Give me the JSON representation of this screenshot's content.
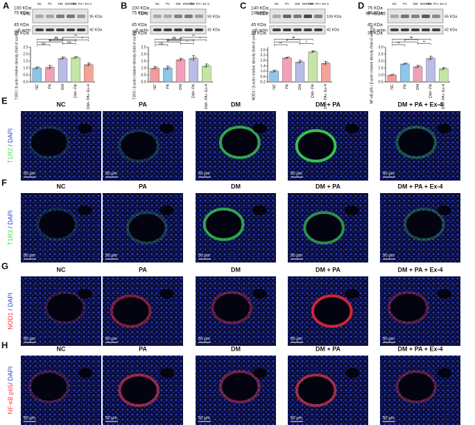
{
  "chart_data": [
    {
      "type": "bar",
      "panel": "A",
      "y_label": "T1R2 / β-actin relative density (fold of control)",
      "categories": [
        "NC",
        "PA",
        "DM",
        "DM+ PA",
        "DM+ PA+ Ex-4"
      ],
      "values": [
        1.0,
        1.05,
        1.7,
        1.75,
        1.25
      ],
      "errors": [
        0.08,
        0.15,
        0.1,
        0.06,
        0.12
      ],
      "colors": [
        "#8ec5ea",
        "#f2a0b8",
        "#b8bde8",
        "#c4e6a4",
        "#f4a394"
      ],
      "ylim": [
        0,
        2.5
      ],
      "yticks": [
        {
          "value": 0,
          "label": "0.0"
        },
        {
          "value": 0.5,
          "label": "0.5"
        },
        {
          "value": 1,
          "label": "1.0"
        },
        {
          "value": 1.5,
          "label": "1.5"
        },
        {
          "value": 2,
          "label": "2.0"
        },
        {
          "value": 2.5,
          "label": "2.5"
        }
      ],
      "annotations": [
        "ns",
        "**",
        "**",
        "ns",
        "ns",
        "*",
        "*",
        "**"
      ]
    },
    {
      "type": "bar",
      "panel": "B",
      "y_label": "T1R3 / β-actin relative density (fold of control)",
      "categories": [
        "NC",
        "PA",
        "DM",
        "DM+ PA",
        "DM+ PA+ Ex-4"
      ],
      "values": [
        1.0,
        1.0,
        1.6,
        1.7,
        1.15
      ],
      "errors": [
        0.12,
        0.15,
        0.1,
        0.2,
        0.15
      ],
      "colors": [
        "#f29c9c",
        "#8ec5ea",
        "#f2a0b8",
        "#b8bde8",
        "#c4e6a4"
      ],
      "ylim": [
        0,
        2.5
      ],
      "yticks": [
        {
          "value": 0,
          "label": "0.0"
        },
        {
          "value": 0.5,
          "label": "0.5"
        },
        {
          "value": 1,
          "label": "1.0"
        },
        {
          "value": 1.5,
          "label": "1.5"
        },
        {
          "value": 2,
          "label": "2.0"
        },
        {
          "value": 2.5,
          "label": "2.5"
        }
      ],
      "annotations": [
        "ns",
        "**",
        "**",
        "ns",
        "*",
        "**",
        "*",
        "**"
      ]
    },
    {
      "type": "bar",
      "panel": "C",
      "y_label": "NOD1 / β-actin relative density (fold of control)",
      "categories": [
        "NC",
        "PA",
        "DM",
        "DM+ PA",
        "DM+ PA+ Ex-4"
      ],
      "values": [
        1.0,
        2.0,
        1.7,
        2.45,
        1.6
      ],
      "errors": [
        0.08,
        0.06,
        0.12,
        0.08,
        0.15
      ],
      "colors": [
        "#8ec5ea",
        "#f2a0b8",
        "#b8bde8",
        "#c4e6a4",
        "#f4a394"
      ],
      "ylim": [
        0.2,
        2.8
      ],
      "yticks": [
        0.2,
        0.6,
        {
          "value": 1,
          "label": "1.0"
        },
        1.4,
        1.8,
        2.2,
        2.6
      ],
      "annotations": [
        "**",
        "*",
        "*",
        "**",
        "*"
      ]
    },
    {
      "type": "bar",
      "panel": "D",
      "y_label": "NF-κB p65 / β-actin relative density (fold of control)",
      "categories": [
        "NC",
        "PA",
        "DM",
        "DM+ PA",
        "DM+ PA+ Ex-4"
      ],
      "values": [
        1.0,
        1.8,
        1.6,
        2.2,
        1.45
      ],
      "errors": [
        0.02,
        0.05,
        0.1,
        0.15,
        0.08
      ],
      "colors": [
        "#f29c9c",
        "#8ec5ea",
        "#f2a0b8",
        "#b8bde8",
        "#c4e6a4"
      ],
      "ylim": [
        0.5,
        3.0
      ],
      "yticks": [
        0.5,
        {
          "value": 1,
          "label": "1.0"
        },
        1.5,
        {
          "value": 2,
          "label": "2.0"
        },
        2.5,
        {
          "value": 3,
          "label": "3.0"
        }
      ],
      "annotations": [
        "**",
        "*",
        "**",
        "*",
        "**"
      ]
    }
  ],
  "blots": [
    {
      "target": "T1R2",
      "markers": [
        "100 KDa",
        "75 KDa",
        "45 KDa",
        "35 KDa"
      ],
      "sizes": [
        "95 KDa",
        "42 KDa"
      ]
    },
    {
      "target": "T1R3",
      "markers": [
        "100 KDa",
        "75 KDa",
        "45 KDa",
        "35 KDa"
      ],
      "sizes": [
        "93 KDa",
        "42 KDa"
      ]
    },
    {
      "target": "NOD1",
      "markers": [
        "140 KDa",
        "100 KDa",
        "45 KDa",
        "35 KDa"
      ],
      "sizes": [
        "108 KDa",
        "42 KDa"
      ]
    },
    {
      "target": "NF-κB p65",
      "markers": [
        "75 KDa",
        "60 KDa",
        "45 KDa",
        "35 KDa"
      ],
      "sizes": [
        "65 KDa",
        "42 KDa"
      ]
    }
  ],
  "loading_control": "β-actin",
  "lanes": [
    "NC",
    "PA",
    "DM",
    "DM+ PA",
    "DM+ PA+ Ex-4"
  ],
  "micrographs": {
    "columns": [
      "NC",
      "PA",
      "DM",
      "DM + PA",
      "DM + PA + Ex-4"
    ],
    "scale_bar": "50 μm",
    "rows": [
      {
        "panel": "E",
        "marker": "T1R2",
        "counterstain": " / DAPI"
      },
      {
        "panel": "F",
        "marker": "T1R3",
        "counterstain": " / DAPI"
      },
      {
        "panel": "G",
        "marker": "NOD1",
        "counterstain": " / DAPI"
      },
      {
        "panel": "H",
        "marker": "NF-κB p65",
        "counterstain": "/ DAPI"
      }
    ]
  }
}
